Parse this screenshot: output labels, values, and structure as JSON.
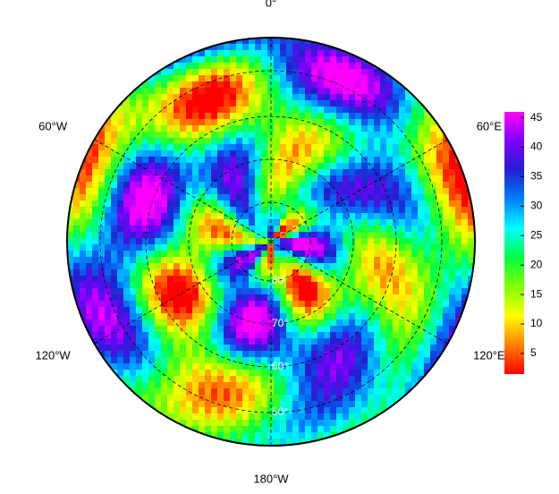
{
  "map": {
    "meridian_labels": [
      "0°",
      "60°E",
      "120°E",
      "180°W",
      "120°W",
      "60°W"
    ],
    "latitude_labels": [
      "80°",
      "70°",
      "60°",
      "50°"
    ],
    "colorbar": {
      "range": [
        1.5,
        46
      ],
      "ticks": [
        5,
        10,
        15,
        20,
        25,
        30,
        35,
        40,
        45
      ],
      "colors": [
        "#ff0000",
        "#ff8000",
        "#ffff00",
        "#80ff00",
        "#00ff40",
        "#00ffff",
        "#0080ff",
        "#2020d0",
        "#8000ff",
        "#ff00ff"
      ]
    }
  }
}
